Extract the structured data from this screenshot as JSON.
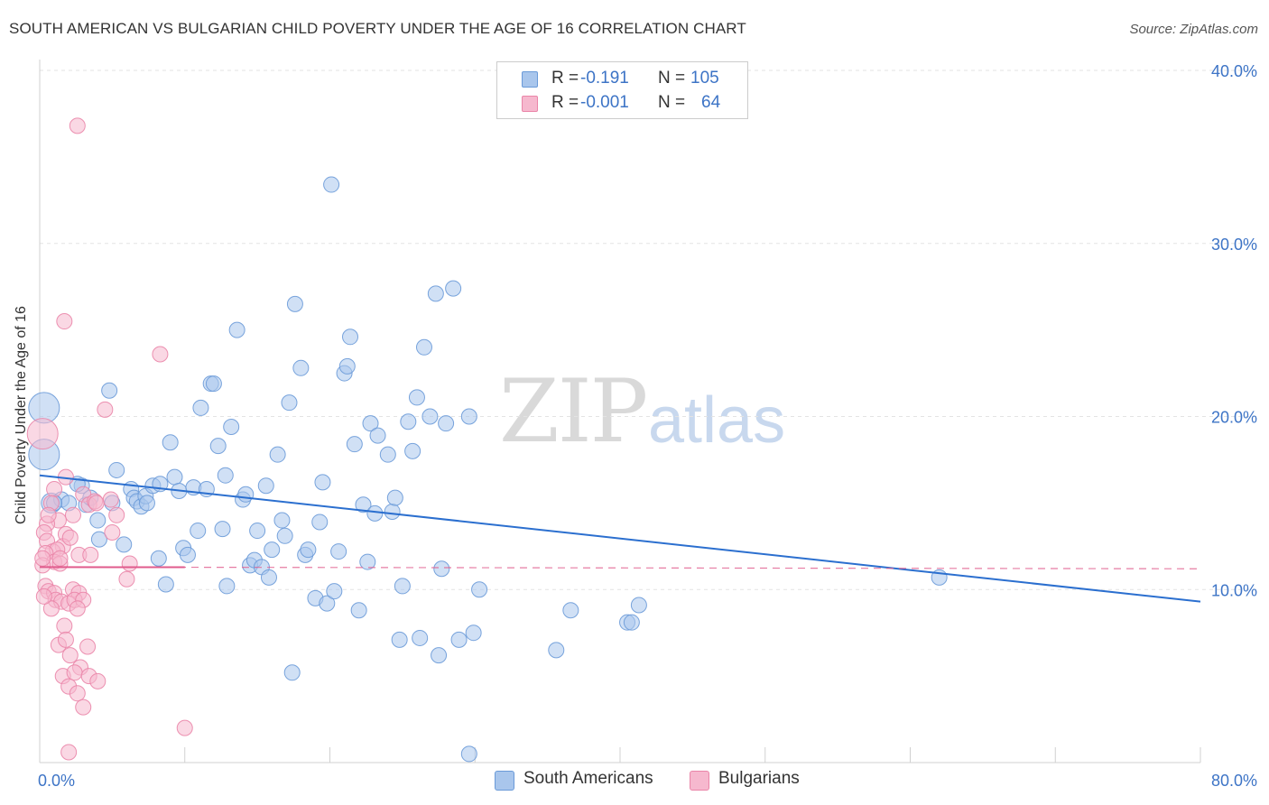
{
  "title": "SOUTH AMERICAN VS BULGARIAN CHILD POVERTY UNDER THE AGE OF 16 CORRELATION CHART",
  "source": "Source: ZipAtlas.com",
  "watermark": {
    "zip": "ZIP",
    "atlas": "atlas"
  },
  "legend": {
    "r_label": "R =",
    "n_label": "N =",
    "series": [
      {
        "r": "-0.191",
        "n": "105"
      },
      {
        "r": "-0.001",
        "n": "64"
      }
    ]
  },
  "colors": {
    "blue_fill": "#a9c6ec",
    "blue_stroke": "#6a9ad8",
    "blue_line": "#2b6fcf",
    "pink_fill": "#f6b8ce",
    "pink_stroke": "#ea85a8",
    "pink_line": "#e05b8c",
    "axis_text": "#3d74c6",
    "grid": "#e3e3e3"
  },
  "chart_data": {
    "type": "scatter",
    "title": "SOUTH AMERICAN VS BULGARIAN CHILD POVERTY UNDER THE AGE OF 16 CORRELATION CHART",
    "ylabel": "Child Poverty Under the Age of 16",
    "xlabel": "",
    "xlim": [
      0,
      80
    ],
    "ylim": [
      0,
      40
    ],
    "x_tick_labels": [
      "0.0%",
      "80.0%"
    ],
    "y_ticks": [
      10,
      20,
      30,
      40
    ],
    "y_tick_labels": [
      "10.0%",
      "20.0%",
      "30.0%",
      "40.0%"
    ],
    "legend_position": "bottom-center",
    "series": [
      {
        "name": "South Americans",
        "color": "#a9c6ec",
        "trendline": {
          "x": [
            0,
            80
          ],
          "y": [
            16.6,
            9.3
          ],
          "style": "solid"
        },
        "points": [
          [
            0.3,
            20.5,
            3
          ],
          [
            0.3,
            17.8,
            3
          ],
          [
            0.8,
            15.0,
            2
          ],
          [
            1.5,
            15.2,
            1
          ],
          [
            2.0,
            15.0,
            1
          ],
          [
            3.2,
            14.9,
            1
          ],
          [
            2.9,
            16.0,
            1
          ],
          [
            3.5,
            15.3,
            1
          ],
          [
            4.0,
            14.0,
            1
          ],
          [
            4.8,
            21.5,
            1
          ],
          [
            5.3,
            16.9,
            1
          ],
          [
            5.8,
            12.6,
            1
          ],
          [
            6.3,
            15.8,
            1
          ],
          [
            6.5,
            15.3,
            1
          ],
          [
            6.7,
            15.1,
            1
          ],
          [
            7.0,
            14.8,
            1
          ],
          [
            7.3,
            15.4,
            1
          ],
          [
            7.4,
            15.0,
            1
          ],
          [
            7.8,
            16.0,
            1
          ],
          [
            8.2,
            11.8,
            1
          ],
          [
            8.7,
            10.3,
            1
          ],
          [
            8.3,
            16.1,
            1
          ],
          [
            9.0,
            18.5,
            1
          ],
          [
            9.3,
            16.5,
            1
          ],
          [
            9.6,
            15.7,
            1
          ],
          [
            9.9,
            12.4,
            1
          ],
          [
            10.2,
            12.0,
            1
          ],
          [
            10.6,
            15.9,
            1
          ],
          [
            10.9,
            13.4,
            1
          ],
          [
            11.1,
            20.5,
            1
          ],
          [
            11.5,
            15.8,
            1
          ],
          [
            11.8,
            21.9,
            1
          ],
          [
            12.0,
            21.9,
            1
          ],
          [
            12.3,
            18.3,
            1
          ],
          [
            12.6,
            13.5,
            1
          ],
          [
            12.8,
            16.6,
            1
          ],
          [
            12.9,
            10.2,
            1
          ],
          [
            13.2,
            19.4,
            1
          ],
          [
            13.6,
            25.0,
            1
          ],
          [
            14.0,
            15.2,
            1
          ],
          [
            14.2,
            15.5,
            1
          ],
          [
            14.5,
            11.4,
            1
          ],
          [
            14.8,
            11.7,
            1
          ],
          [
            15.0,
            13.4,
            1
          ],
          [
            15.3,
            11.3,
            1
          ],
          [
            15.6,
            16.0,
            1
          ],
          [
            15.8,
            10.7,
            1
          ],
          [
            16.0,
            12.3,
            1
          ],
          [
            16.4,
            17.8,
            1
          ],
          [
            16.7,
            14.0,
            1
          ],
          [
            16.9,
            13.1,
            1
          ],
          [
            17.2,
            20.8,
            1
          ],
          [
            17.4,
            5.2,
            1
          ],
          [
            17.6,
            26.5,
            1
          ],
          [
            18.0,
            22.8,
            1
          ],
          [
            18.3,
            12.0,
            1
          ],
          [
            18.5,
            12.3,
            1
          ],
          [
            19.0,
            9.5,
            1
          ],
          [
            19.3,
            13.9,
            1
          ],
          [
            19.5,
            16.2,
            1
          ],
          [
            19.8,
            9.2,
            1
          ],
          [
            20.1,
            33.4,
            1
          ],
          [
            20.3,
            9.9,
            1
          ],
          [
            20.6,
            12.2,
            1
          ],
          [
            21.0,
            22.5,
            1
          ],
          [
            21.2,
            22.9,
            1
          ],
          [
            21.4,
            24.6,
            1
          ],
          [
            21.7,
            18.4,
            1
          ],
          [
            22.0,
            8.8,
            1
          ],
          [
            22.3,
            14.9,
            1
          ],
          [
            22.6,
            11.6,
            1
          ],
          [
            22.8,
            19.6,
            1
          ],
          [
            23.1,
            14.4,
            1
          ],
          [
            23.3,
            18.9,
            1
          ],
          [
            24.0,
            17.8,
            1
          ],
          [
            24.3,
            14.5,
            1
          ],
          [
            24.5,
            15.3,
            1
          ],
          [
            24.8,
            7.1,
            1
          ],
          [
            25.0,
            10.2,
            1
          ],
          [
            25.4,
            19.7,
            1
          ],
          [
            25.7,
            18.0,
            1
          ],
          [
            26.0,
            21.1,
            1
          ],
          [
            26.2,
            7.2,
            1
          ],
          [
            26.5,
            24.0,
            1
          ],
          [
            26.9,
            20.0,
            1
          ],
          [
            27.3,
            27.1,
            1
          ],
          [
            27.5,
            6.2,
            1
          ],
          [
            27.7,
            11.2,
            1
          ],
          [
            28.0,
            19.6,
            1
          ],
          [
            28.5,
            27.4,
            1
          ],
          [
            28.9,
            7.1,
            1
          ],
          [
            29.6,
            20.0,
            1
          ],
          [
            29.9,
            7.5,
            1
          ],
          [
            30.3,
            10.0,
            1
          ],
          [
            29.6,
            0.5,
            1
          ],
          [
            35.6,
            6.5,
            1
          ],
          [
            36.6,
            8.8,
            1
          ],
          [
            40.5,
            8.1,
            1
          ],
          [
            40.8,
            8.1,
            1
          ],
          [
            41.3,
            9.1,
            1
          ],
          [
            62.0,
            10.7,
            1
          ],
          [
            1.0,
            15.0,
            1
          ],
          [
            4.1,
            12.9,
            1
          ],
          [
            2.6,
            16.1,
            1
          ],
          [
            5.0,
            15.0,
            1
          ]
        ]
      },
      {
        "name": "Bulgarians",
        "color": "#f6b8ce",
        "trendline": {
          "x": [
            0,
            80
          ],
          "y": [
            11.3,
            11.2
          ],
          "style": "dashed",
          "solid_until_x": 10
        },
        "points": [
          [
            0.2,
            19.0,
            3
          ],
          [
            2.6,
            36.8,
            1
          ],
          [
            1.7,
            25.5,
            1
          ],
          [
            8.3,
            23.6,
            1
          ],
          [
            4.5,
            20.4,
            1
          ],
          [
            1.8,
            16.5,
            1
          ],
          [
            1.0,
            15.8,
            1
          ],
          [
            3.0,
            15.5,
            1
          ],
          [
            0.8,
            15.0,
            1
          ],
          [
            3.4,
            14.9,
            1
          ],
          [
            3.8,
            15.1,
            1
          ],
          [
            2.3,
            14.3,
            1
          ],
          [
            5.3,
            14.3,
            1
          ],
          [
            1.3,
            14.0,
            1
          ],
          [
            0.5,
            13.8,
            1
          ],
          [
            0.3,
            13.3,
            1
          ],
          [
            1.8,
            13.2,
            1
          ],
          [
            5.0,
            13.3,
            1
          ],
          [
            0.5,
            12.8,
            1
          ],
          [
            1.6,
            12.5,
            1
          ],
          [
            0.9,
            12.2,
            1
          ],
          [
            1.2,
            12.3,
            1
          ],
          [
            0.4,
            12.1,
            1
          ],
          [
            2.7,
            12.0,
            1
          ],
          [
            1.0,
            11.6,
            1
          ],
          [
            1.4,
            11.5,
            1
          ],
          [
            0.2,
            11.4,
            1
          ],
          [
            6.2,
            11.5,
            1
          ],
          [
            3.5,
            12.0,
            1
          ],
          [
            0.4,
            10.2,
            1
          ],
          [
            0.6,
            9.9,
            1
          ],
          [
            1.0,
            9.8,
            1
          ],
          [
            2.3,
            10.0,
            1
          ],
          [
            2.7,
            9.8,
            1
          ],
          [
            1.1,
            9.4,
            1
          ],
          [
            1.5,
            9.3,
            1
          ],
          [
            2.0,
            9.2,
            1
          ],
          [
            2.4,
            9.4,
            1
          ],
          [
            3.0,
            9.4,
            1
          ],
          [
            0.8,
            8.9,
            1
          ],
          [
            2.6,
            8.9,
            1
          ],
          [
            1.7,
            7.9,
            1
          ],
          [
            1.3,
            6.8,
            1
          ],
          [
            3.3,
            6.7,
            1
          ],
          [
            1.8,
            7.1,
            1
          ],
          [
            2.1,
            6.2,
            1
          ],
          [
            2.8,
            5.5,
            1
          ],
          [
            1.6,
            5.0,
            1
          ],
          [
            2.4,
            5.2,
            1
          ],
          [
            3.4,
            5.0,
            1
          ],
          [
            4.0,
            4.7,
            1
          ],
          [
            2.0,
            4.4,
            1
          ],
          [
            2.6,
            4.0,
            1
          ],
          [
            3.0,
            3.2,
            1
          ],
          [
            10.0,
            2.0,
            1
          ],
          [
            2.0,
            0.6,
            1
          ],
          [
            6.0,
            10.6,
            1
          ],
          [
            4.9,
            15.2,
            1
          ],
          [
            1.4,
            11.8,
            1
          ],
          [
            0.2,
            11.8,
            1
          ],
          [
            0.6,
            14.3,
            1
          ],
          [
            0.3,
            9.6,
            1
          ],
          [
            3.9,
            15.0,
            1
          ],
          [
            2.1,
            13.0,
            1
          ]
        ]
      }
    ]
  }
}
